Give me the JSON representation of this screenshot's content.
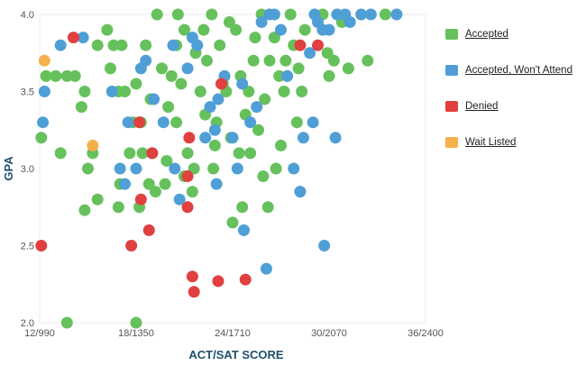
{
  "chart_data": {
    "type": "scatter",
    "title": "",
    "xlabel": "ACT/SAT SCORE",
    "ylabel": "GPA",
    "x_ticks": [
      "12/990",
      "18/1350",
      "24/1710",
      "30/2070",
      "36/2400"
    ],
    "x_tick_values": [
      12,
      18,
      24,
      30,
      36
    ],
    "xlim": [
      12,
      36
    ],
    "y_ticks": [
      "2.0",
      "2.5",
      "3.0",
      "3.5",
      "4.0"
    ],
    "y_tick_values": [
      2.0,
      2.5,
      3.0,
      3.5,
      4.0
    ],
    "ylim": [
      2.0,
      4.0
    ],
    "legend_position": "right",
    "grid": false,
    "series": [
      {
        "name": "Accepted",
        "color": "#66c15c",
        "points": [
          [
            12.1,
            3.2
          ],
          [
            12.4,
            3.6
          ],
          [
            13.0,
            3.6
          ],
          [
            13.7,
            3.6
          ],
          [
            14.2,
            3.6
          ],
          [
            15.6,
            3.8
          ],
          [
            14.6,
            3.4
          ],
          [
            15.3,
            3.1
          ],
          [
            14.8,
            3.5
          ],
          [
            13.3,
            3.1
          ],
          [
            15.0,
            3.0
          ],
          [
            16.2,
            3.9
          ],
          [
            17.1,
            3.8
          ],
          [
            16.6,
            3.8
          ],
          [
            16.4,
            3.65
          ],
          [
            16.9,
            3.5
          ],
          [
            17.3,
            3.5
          ],
          [
            17.6,
            3.1
          ],
          [
            17.0,
            2.9
          ],
          [
            16.9,
            2.75
          ],
          [
            15.6,
            2.8
          ],
          [
            14.8,
            2.73
          ],
          [
            13.7,
            2.0
          ],
          [
            18.0,
            2.0
          ],
          [
            18.2,
            2.75
          ],
          [
            19.3,
            4.0
          ],
          [
            18.6,
            3.8
          ],
          [
            18.0,
            3.55
          ],
          [
            18.3,
            3.3
          ],
          [
            18.4,
            3.1
          ],
          [
            18.8,
            2.9
          ],
          [
            19.2,
            2.85
          ],
          [
            19.8,
            2.9
          ],
          [
            20.0,
            3.4
          ],
          [
            20.5,
            3.3
          ],
          [
            20.2,
            3.6
          ],
          [
            20.5,
            3.8
          ],
          [
            21.0,
            3.9
          ],
          [
            20.6,
            4.0
          ],
          [
            21.2,
            3.1
          ],
          [
            21.5,
            2.85
          ],
          [
            21.6,
            3.0
          ],
          [
            22.0,
            3.5
          ],
          [
            22.4,
            3.7
          ],
          [
            22.2,
            3.9
          ],
          [
            22.7,
            4.0
          ],
          [
            23.0,
            3.3
          ],
          [
            22.8,
            3.0
          ],
          [
            23.2,
            3.8
          ],
          [
            23.6,
            3.5
          ],
          [
            23.9,
            3.2
          ],
          [
            24.2,
            3.9
          ],
          [
            24.5,
            3.6
          ],
          [
            24.0,
            2.65
          ],
          [
            24.6,
            2.75
          ],
          [
            25.0,
            3.5
          ],
          [
            25.4,
            3.85
          ],
          [
            25.8,
            4.0
          ],
          [
            25.1,
            3.1
          ],
          [
            25.9,
            2.95
          ],
          [
            26.0,
            3.45
          ],
          [
            26.3,
            3.7
          ],
          [
            26.6,
            3.85
          ],
          [
            26.7,
            3.0
          ],
          [
            26.2,
            2.75
          ],
          [
            27.2,
            3.5
          ],
          [
            27.3,
            3.7
          ],
          [
            27.6,
            4.0
          ],
          [
            27.8,
            3.8
          ],
          [
            28.1,
            3.65
          ],
          [
            28.3,
            3.5
          ],
          [
            28.0,
            3.3
          ],
          [
            29.6,
            4.0
          ],
          [
            29.9,
            3.75
          ],
          [
            30.0,
            3.6
          ],
          [
            30.3,
            3.7
          ],
          [
            30.8,
            3.95
          ],
          [
            31.2,
            3.65
          ],
          [
            32.4,
            3.7
          ],
          [
            33.5,
            4.0
          ],
          [
            19.6,
            3.65
          ],
          [
            21.7,
            3.75
          ],
          [
            23.4,
            3.55
          ],
          [
            24.8,
            3.35
          ],
          [
            25.6,
            3.25
          ],
          [
            21.0,
            2.95
          ],
          [
            22.9,
            3.15
          ],
          [
            19.9,
            3.05
          ],
          [
            27.0,
            3.15
          ],
          [
            26.9,
            3.6
          ],
          [
            18.9,
            3.45
          ],
          [
            24.4,
            3.1
          ],
          [
            22.3,
            3.35
          ],
          [
            20.8,
            3.55
          ],
          [
            28.5,
            3.9
          ],
          [
            17.8,
            3.3
          ],
          [
            23.8,
            3.95
          ],
          [
            25.3,
            3.7
          ]
        ]
      },
      {
        "name": "Accepted, Won't Attend",
        "color": "#4f9fd6",
        "points": [
          [
            12.2,
            3.3
          ],
          [
            12.3,
            3.5
          ],
          [
            13.3,
            3.8
          ],
          [
            14.7,
            3.85
          ],
          [
            16.5,
            3.5
          ],
          [
            17.5,
            3.3
          ],
          [
            17.0,
            3.0
          ],
          [
            17.3,
            2.9
          ],
          [
            18.0,
            3.0
          ],
          [
            18.3,
            3.65
          ],
          [
            18.6,
            3.7
          ],
          [
            19.0,
            3.1
          ],
          [
            19.7,
            3.3
          ],
          [
            20.4,
            3.0
          ],
          [
            20.7,
            2.8
          ],
          [
            21.2,
            3.65
          ],
          [
            21.8,
            3.8
          ],
          [
            22.3,
            3.2
          ],
          [
            22.6,
            3.4
          ],
          [
            23.1,
            3.45
          ],
          [
            23.5,
            3.6
          ],
          [
            24.0,
            3.2
          ],
          [
            24.3,
            3.0
          ],
          [
            24.7,
            2.6
          ],
          [
            25.1,
            3.3
          ],
          [
            25.5,
            3.4
          ],
          [
            25.8,
            3.95
          ],
          [
            26.3,
            4.0
          ],
          [
            26.6,
            4.0
          ],
          [
            27.0,
            3.9
          ],
          [
            27.4,
            3.6
          ],
          [
            27.8,
            3.0
          ],
          [
            28.2,
            2.85
          ],
          [
            28.4,
            3.2
          ],
          [
            29.0,
            3.3
          ],
          [
            29.1,
            4.0
          ],
          [
            29.3,
            3.95
          ],
          [
            29.6,
            3.9
          ],
          [
            30.0,
            3.9
          ],
          [
            30.5,
            4.0
          ],
          [
            31.0,
            4.0
          ],
          [
            31.3,
            3.95
          ],
          [
            32.0,
            4.0
          ],
          [
            32.6,
            4.0
          ],
          [
            34.2,
            4.0
          ],
          [
            30.4,
            3.2
          ],
          [
            29.7,
            2.5
          ],
          [
            26.1,
            2.35
          ],
          [
            23.0,
            2.9
          ],
          [
            20.3,
            3.8
          ],
          [
            19.1,
            3.45
          ],
          [
            24.6,
            3.55
          ],
          [
            22.9,
            3.25
          ],
          [
            21.5,
            3.85
          ],
          [
            28.8,
            3.75
          ]
        ]
      },
      {
        "name": "Denied",
        "color": "#e04040",
        "points": [
          [
            12.1,
            2.5
          ],
          [
            14.1,
            3.85
          ],
          [
            17.7,
            2.5
          ],
          [
            18.2,
            3.3
          ],
          [
            18.3,
            2.8
          ],
          [
            18.8,
            2.6
          ],
          [
            19.0,
            3.1
          ],
          [
            21.3,
            3.2
          ],
          [
            21.2,
            2.75
          ],
          [
            21.5,
            2.3
          ],
          [
            21.6,
            2.2
          ],
          [
            23.1,
            2.27
          ],
          [
            24.8,
            2.28
          ],
          [
            28.2,
            3.8
          ],
          [
            29.3,
            3.8
          ],
          [
            23.3,
            3.55
          ],
          [
            21.2,
            2.95
          ]
        ]
      },
      {
        "name": "Wait Listed",
        "color": "#f5b04c",
        "points": [
          [
            12.3,
            3.7
          ],
          [
            15.3,
            3.15
          ]
        ]
      }
    ]
  }
}
